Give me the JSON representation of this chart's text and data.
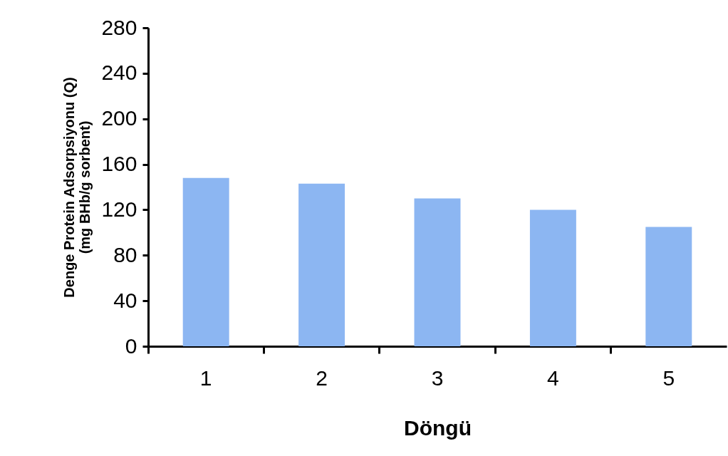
{
  "chart_data": {
    "type": "bar",
    "xlabel": "Döngü",
    "ylabel": "Denge Protein Adsorpsiyonu (Q)\n(mg BHb/g sorbent)",
    "categories": [
      "1",
      "2",
      "3",
      "4",
      "5"
    ],
    "values": [
      148,
      143,
      130,
      120,
      105
    ],
    "color": "#8cb6f2",
    "ylim": [
      0,
      280
    ],
    "yticks": [
      0,
      40,
      80,
      120,
      160,
      200,
      240,
      280
    ],
    "grid": false
  }
}
